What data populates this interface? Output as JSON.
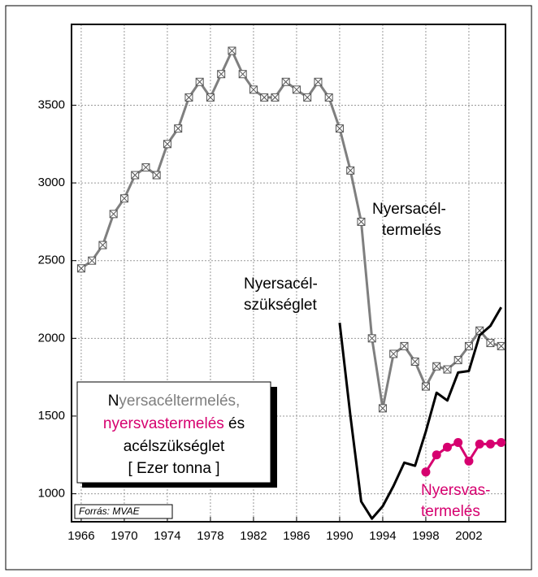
{
  "chart_data": {
    "type": "line",
    "xlim": [
      1965.1,
      2005.4
    ],
    "xticks": [
      1966,
      1970,
      1974,
      1978,
      1982,
      1986,
      1990,
      1994,
      1998,
      2002
    ],
    "ylim": [
      820,
      4020
    ],
    "yticks": [
      1000,
      1500,
      2000,
      2500,
      3000,
      3500
    ],
    "grid": true,
    "series": [
      {
        "color": "#7f7f7f",
        "marker": "box-x",
        "x": [
          1966,
          1967,
          1968,
          1969,
          1970,
          1971,
          1972,
          1973,
          1974,
          1975,
          1976,
          1977,
          1978,
          1979,
          1980,
          1981,
          1982,
          1983,
          1984,
          1985,
          1986,
          1987,
          1988,
          1989,
          1990,
          1991,
          1992,
          1993,
          1994,
          1995,
          1996,
          1997,
          1998,
          1999,
          2000,
          2001,
          2002,
          2003,
          2004,
          2005
        ],
        "values": [
          2450,
          2500,
          2600,
          2800,
          2900,
          3050,
          3100,
          3050,
          3250,
          3350,
          3550,
          3650,
          3550,
          3700,
          3850,
          3700,
          3600,
          3550,
          3550,
          3650,
          3600,
          3550,
          3650,
          3550,
          3350,
          3080,
          2750,
          2000,
          1550,
          1900,
          1950,
          1850,
          1690,
          1820,
          1800,
          1860,
          1950,
          2050,
          1970,
          1950
        ]
      },
      {
        "color": "#000000",
        "marker": "none",
        "x": [
          1990,
          1991,
          1992,
          1993,
          1994,
          1995,
          1996,
          1997,
          1998,
          1999,
          2000,
          2001,
          2002,
          2003,
          2004,
          2005
        ],
        "values": [
          2100,
          1500,
          950,
          840,
          920,
          1050,
          1200,
          1180,
          1400,
          1650,
          1600,
          1780,
          1790,
          2020,
          2080,
          2200
        ]
      },
      {
        "color": "#d6006f",
        "marker": "circle",
        "x": [
          1998,
          1999,
          2000,
          2001,
          2002,
          2003,
          2004,
          2005
        ],
        "values": [
          1140,
          1250,
          1300,
          1330,
          1210,
          1320,
          1320,
          1330
        ]
      }
    ],
    "annotations": [
      {
        "lines": [
          "Nyersacél-",
          "termelés"
        ],
        "color": "#000000"
      },
      {
        "lines": [
          "Nyersacél-",
          "szükséglet"
        ],
        "color": "#000000"
      },
      {
        "lines": [
          "Nyersvas-",
          "termelés"
        ],
        "color": "#d6006f"
      }
    ],
    "legend_box": {
      "line1": [
        {
          "text": "N",
          "color": "#000000"
        },
        {
          "text": "yersacéltermelés,",
          "color": "#7f7f7f"
        }
      ],
      "line2": [
        {
          "text": "nyersvastermelés",
          "color": "#d6006f"
        },
        {
          "text": " és",
          "color": "#000000"
        }
      ],
      "line3": "acélszükséglet",
      "line4": "[ Ezer tonna ]"
    },
    "source": "Forrás: MVAE"
  }
}
